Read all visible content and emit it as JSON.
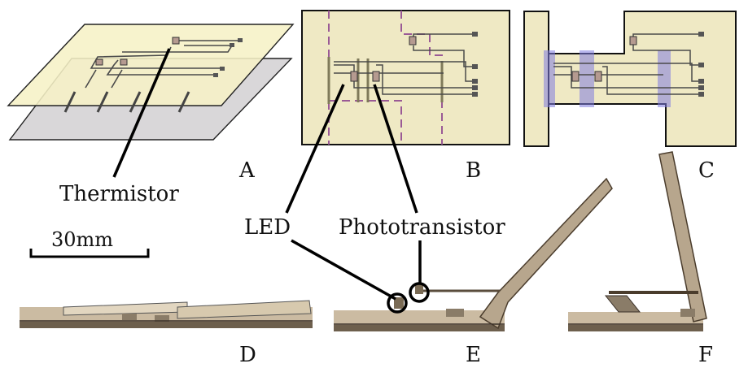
{
  "panels": {
    "a": "A",
    "b": "B",
    "c": "C",
    "d": "D",
    "e": "E",
    "f": "F"
  },
  "callouts": {
    "thermistor": "Thermistor",
    "led": "LED",
    "phototransistor": "Phototransistor"
  },
  "scale_bar": {
    "label": "30mm"
  },
  "colors": {
    "sheet_top": "#f6f1c6",
    "sheet_bottom": "#d9d7d9",
    "panel_fill": "#efe9c4",
    "fold_line": "#9a5a96",
    "hinge_highlight": "#7f7be0",
    "trace": "#4a4a4a",
    "prototype": "#b7a68d"
  }
}
